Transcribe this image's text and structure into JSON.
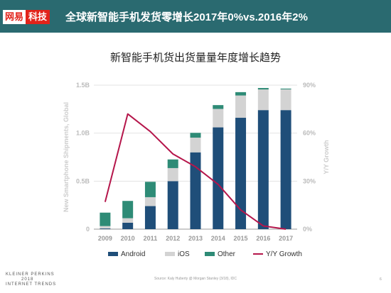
{
  "header": {
    "logo_a": "网易",
    "logo_b": "科技",
    "title": "全球新智能手机发货零增长2017年0%vs.2016年2%"
  },
  "chart_data": {
    "type": "bar",
    "stacked": true,
    "title": "新智能手机货出货量量年度增长趋势",
    "categories": [
      "2009",
      "2010",
      "2011",
      "2012",
      "2013",
      "2014",
      "2015",
      "2016",
      "2017"
    ],
    "series": [
      {
        "name": "Android",
        "color": "#1f4e79",
        "values": [
          0.007,
          0.067,
          0.24,
          0.5,
          0.8,
          1.06,
          1.16,
          1.24,
          1.24
        ]
      },
      {
        "name": "iOS",
        "color": "#d3d3d3",
        "values": [
          0.025,
          0.047,
          0.093,
          0.136,
          0.153,
          0.192,
          0.232,
          0.215,
          0.216
        ]
      },
      {
        "name": "Other",
        "color": "#2e8b76",
        "values": [
          0.14,
          0.18,
          0.16,
          0.09,
          0.05,
          0.04,
          0.035,
          0.015,
          0.008
        ]
      }
    ],
    "line": {
      "name": "Y/Y Growth",
      "color": "#b5164b",
      "values": [
        17,
        72,
        61,
        47,
        39,
        28,
        12,
        2,
        0
      ]
    },
    "ylabel": "New Smartphone Shipments, Global",
    "y2label": "Y/Y Growth",
    "ylim": [
      0,
      1.5
    ],
    "y2lim": [
      0,
      90
    ],
    "yticks": [
      "0",
      "0.5B",
      "1.0B",
      "1.5B"
    ],
    "y2ticks": [
      "0%",
      "30%",
      "60%",
      "90%"
    ],
    "legend_position": "bottom"
  },
  "footer": {
    "org_line1": "KLEINER PERKINS",
    "org_line2": "2018",
    "org_line3": "INTERNET TRENDS",
    "source": "Source: Kaly Huberty @ Morgan Stanley (3/18), IDC",
    "page": "6"
  }
}
